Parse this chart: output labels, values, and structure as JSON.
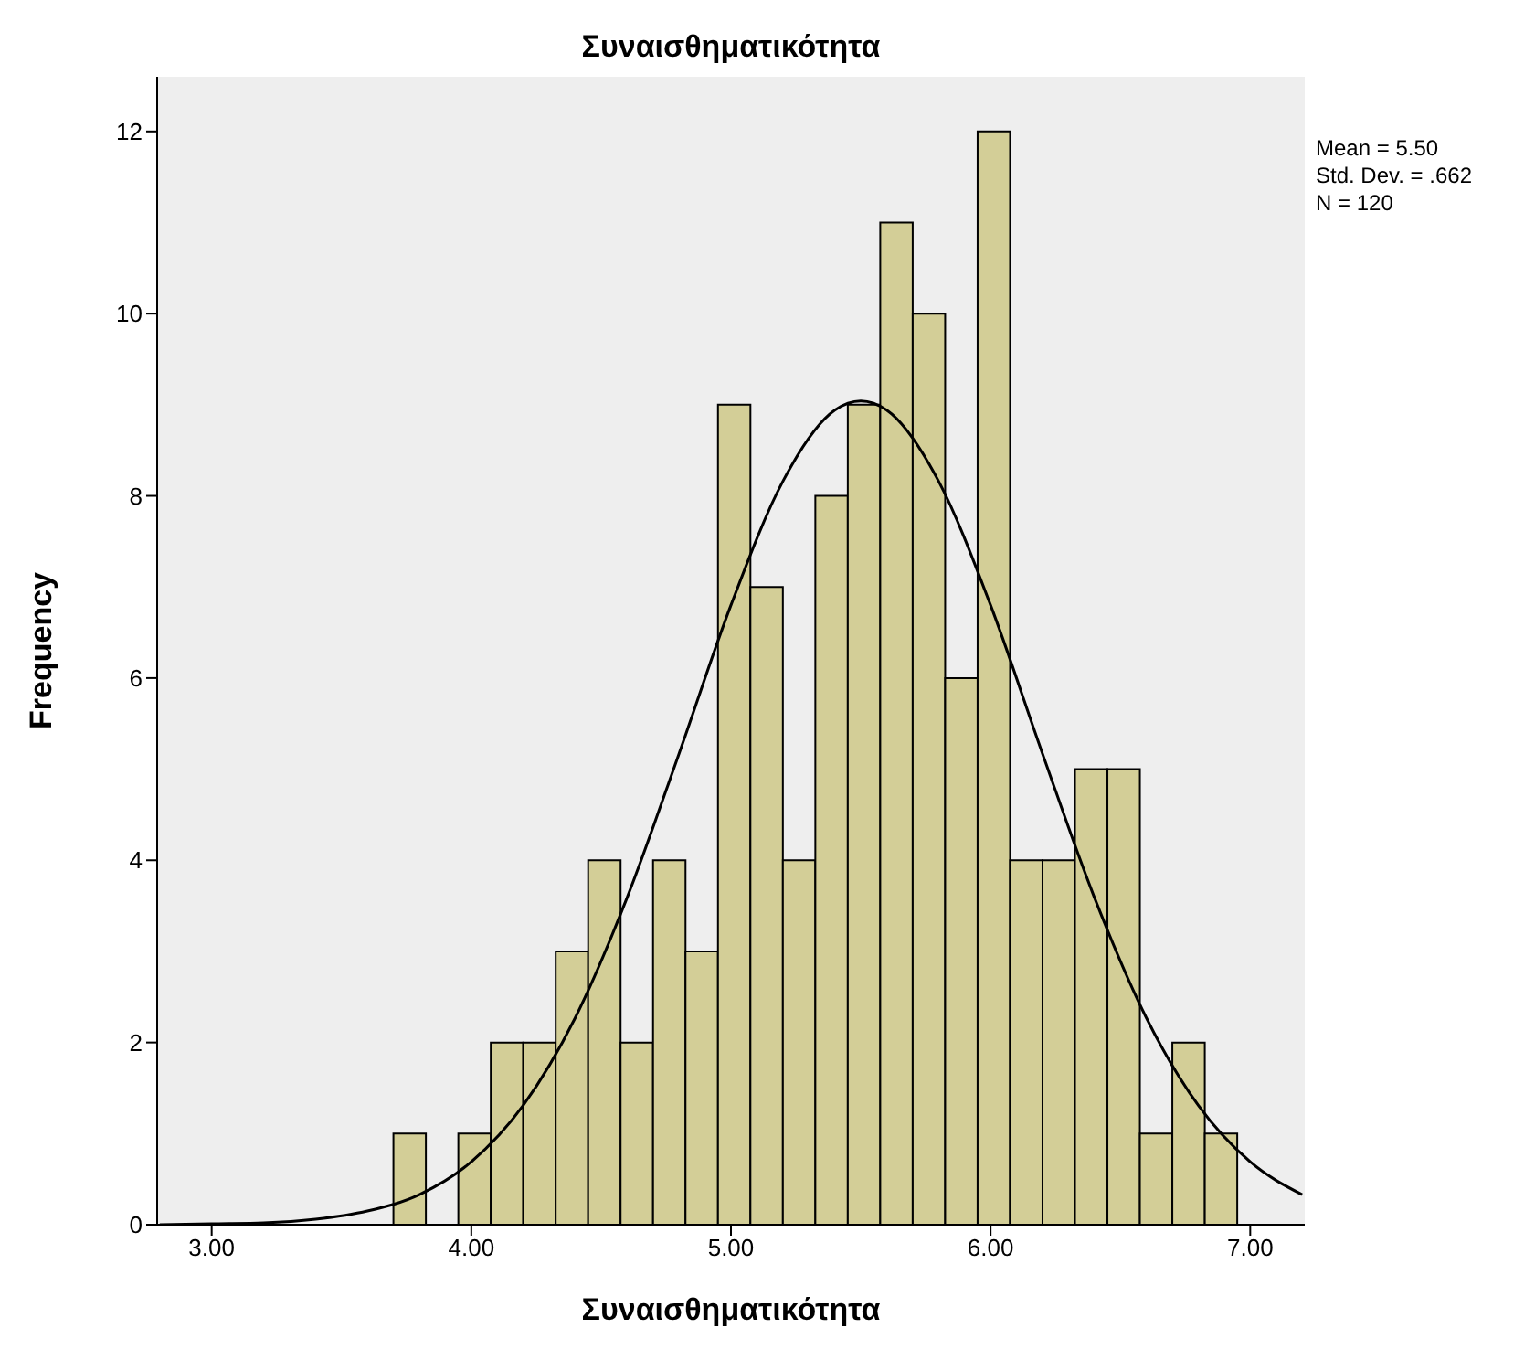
{
  "chart_data": {
    "type": "histogram",
    "title": "Συναισθηματικότητα",
    "xlabel": "Συναισθηματικότητα",
    "ylabel": "Frequency",
    "bins": [
      3.7,
      3.825,
      3.95,
      4.075,
      4.2,
      4.325,
      4.45,
      4.575,
      4.7,
      4.825,
      4.95,
      5.075,
      5.2,
      5.325,
      5.45,
      5.575,
      5.7,
      5.825,
      5.95,
      6.075,
      6.2,
      6.325,
      6.45,
      6.575,
      6.7,
      6.825,
      6.95
    ],
    "values": [
      1,
      0,
      1,
      2,
      2,
      3,
      4,
      2,
      4,
      3,
      9,
      7,
      4,
      8,
      9,
      11,
      10,
      6,
      12,
      4,
      4,
      5,
      5,
      1,
      2,
      1
    ],
    "color": "#d3ce97",
    "series": [
      {
        "type": "line",
        "color": "#000000",
        "x": [
          2.8,
          3.0,
          3.2,
          3.4,
          3.6,
          3.8,
          4.0,
          4.2,
          4.4,
          4.6,
          4.8,
          5.0,
          5.2,
          5.4,
          5.5,
          5.6,
          5.8,
          6.0,
          6.2,
          6.4,
          6.6,
          6.8,
          7.0,
          7.2
        ],
        "values": [
          0.0,
          0.01,
          0.02,
          0.06,
          0.15,
          0.33,
          0.69,
          1.31,
          2.27,
          3.59,
          5.17,
          6.8,
          8.16,
          8.94,
          9.04,
          8.94,
          8.16,
          6.8,
          5.17,
          3.59,
          2.27,
          1.31,
          0.69,
          0.33
        ]
      }
    ],
    "xlim": [
      2.79,
      7.21
    ],
    "xticks": [
      {
        "value": 3,
        "label": "3.00"
      },
      {
        "value": 4,
        "label": "4.00"
      },
      {
        "value": 5,
        "label": "5.00"
      },
      {
        "value": 6,
        "label": "6.00"
      },
      {
        "value": 7,
        "label": "7.00"
      }
    ],
    "ylim": [
      0,
      12.6
    ],
    "yticks": [
      0,
      2,
      4,
      6,
      8,
      10,
      12
    ],
    "annotations": [
      "Mean = 5.50",
      "Std. Dev. = .662",
      "N = 120"
    ]
  }
}
